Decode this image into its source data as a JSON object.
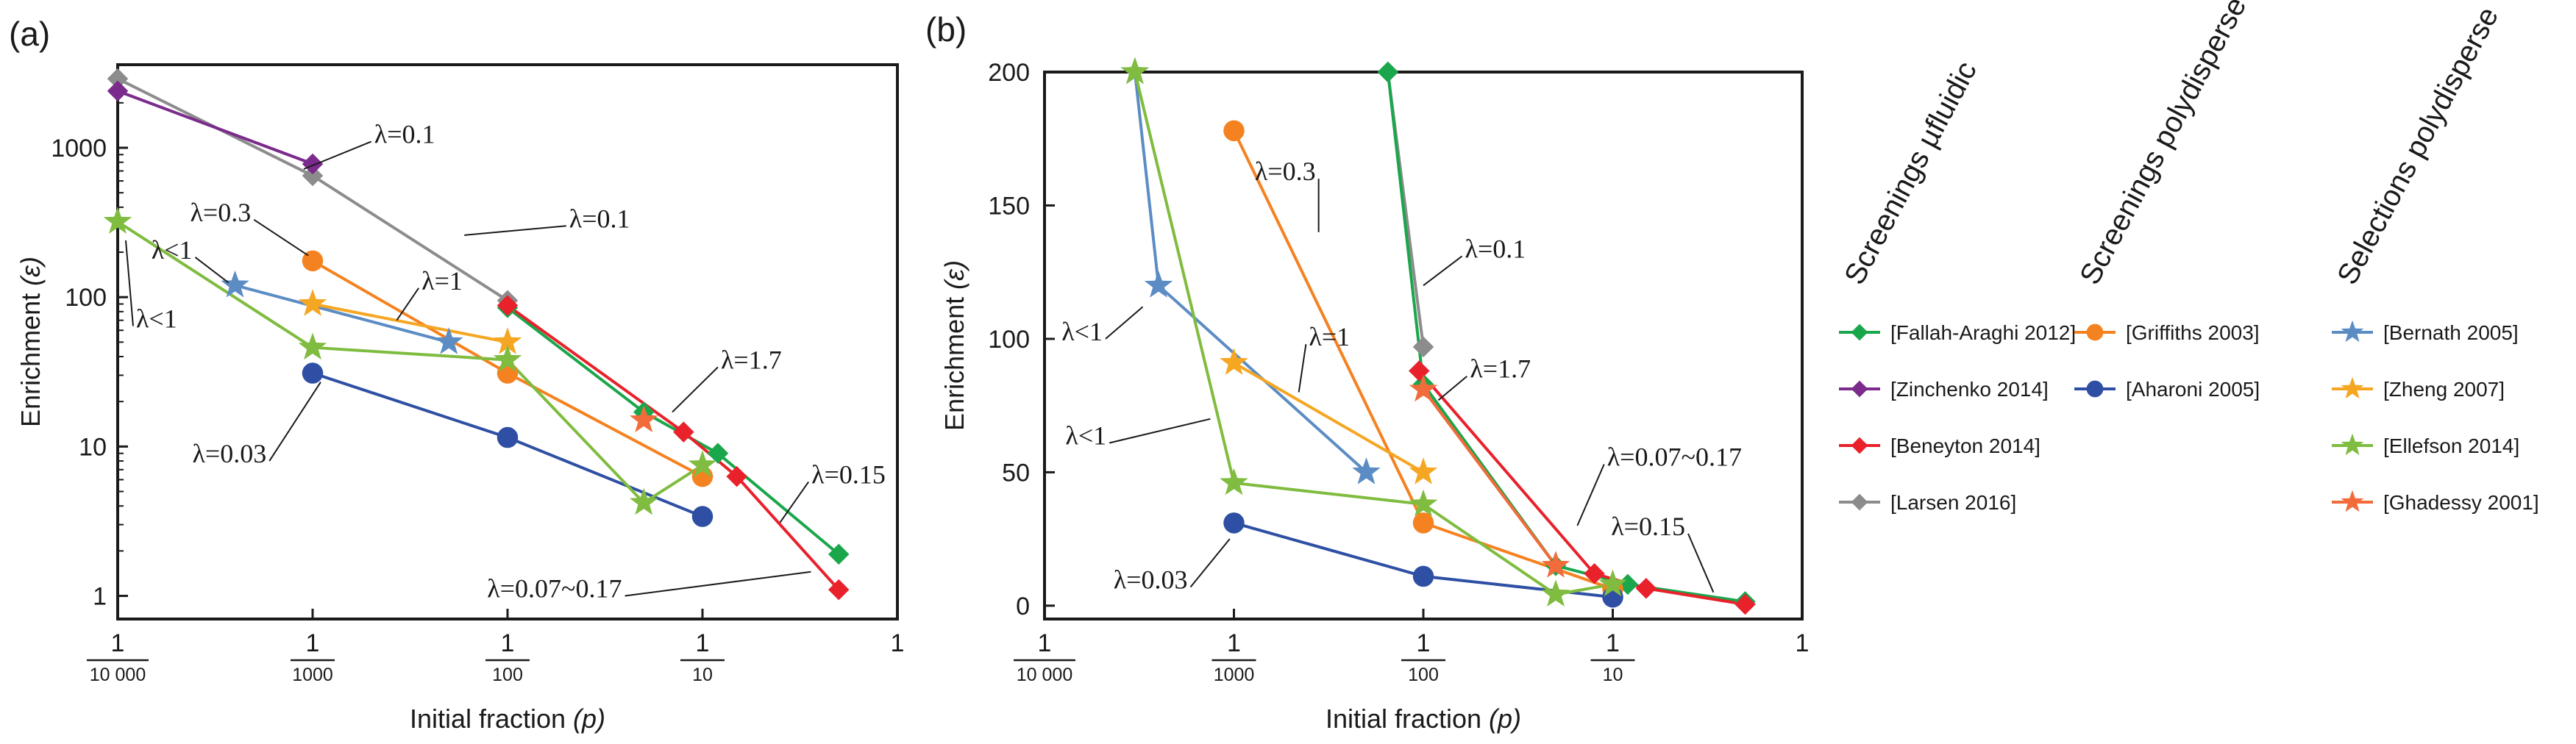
{
  "chart_data": [
    {
      "panel_label": "(a)",
      "type": "line",
      "xscale": "log",
      "yscale": "log",
      "xlim": [
        0.0001,
        1
      ],
      "ylim": [
        0.7,
        3600
      ],
      "xlabel_main": "Initial fraction ",
      "xlabel_var": "(p)",
      "ylabel_main": "Enrichment ",
      "ylabel_var": "(ε)",
      "x_ticks": [
        {
          "value": 0.0001,
          "num": "1",
          "den": "10 000"
        },
        {
          "value": 0.001,
          "num": "1",
          "den": "1000"
        },
        {
          "value": 0.01,
          "num": "1",
          "den": "100"
        },
        {
          "value": 0.1,
          "num": "1",
          "den": "10"
        },
        {
          "value": 1,
          "label": "1"
        }
      ],
      "y_ticks": [
        {
          "value": 1,
          "label": "1"
        },
        {
          "value": 10,
          "label": "10"
        },
        {
          "value": 100,
          "label": "100"
        },
        {
          "value": 1000,
          "label": "1000"
        }
      ],
      "series": [
        {
          "name": "[Larsen 2016]",
          "color": "#8c8c8c",
          "marker": "diamond",
          "points": [
            [
              0.0001,
              2900
            ],
            [
              0.001,
              650
            ],
            [
              0.01,
              95
            ]
          ]
        },
        {
          "name": "[Zinchenko 2014]",
          "color": "#7b2b8c",
          "marker": "diamond",
          "points": [
            [
              0.0001,
              2400
            ],
            [
              0.001,
              780
            ]
          ]
        },
        {
          "name": "[Fallah-Araghi 2012]",
          "color": "#1aa64b",
          "marker": "diamond",
          "points": [
            [
              0.01,
              85
            ],
            [
              0.05,
              17
            ],
            [
              0.12,
              9
            ],
            [
              0.5,
              1.9
            ]
          ]
        },
        {
          "name": "[Beneyton 2014]",
          "color": "#e8212b",
          "marker": "diamond",
          "points": [
            [
              0.01,
              88
            ],
            [
              0.08,
              12.5
            ],
            [
              0.15,
              6.3
            ],
            [
              0.5,
              1.1
            ]
          ]
        },
        {
          "name": "[Griffiths 2003]",
          "color": "#f58220",
          "marker": "circle",
          "points": [
            [
              0.001,
              175
            ],
            [
              0.01,
              31
            ],
            [
              0.1,
              6.3
            ]
          ]
        },
        {
          "name": "[Aharoni 2005]",
          "color": "#2e4fa3",
          "marker": "circle",
          "points": [
            [
              0.001,
              31
            ],
            [
              0.01,
              11.5
            ],
            [
              0.1,
              3.4
            ]
          ]
        },
        {
          "name": "[Bernath 2005]",
          "color": "#5b8cc4",
          "marker": "star",
          "points": [
            [
              0.0004,
              120
            ],
            [
              0.005,
              50
            ]
          ]
        },
        {
          "name": "[Zheng 2007]",
          "color": "#f5a623",
          "marker": "star",
          "points": [
            [
              0.001,
              90
            ],
            [
              0.01,
              50
            ]
          ]
        },
        {
          "name": "[Ellefson 2014]",
          "color": "#7fbc3f",
          "marker": "star",
          "points": [
            [
              0.0001,
              320
            ],
            [
              0.001,
              46
            ],
            [
              0.01,
              38
            ],
            [
              0.05,
              4.2
            ],
            [
              0.1,
              7.5
            ]
          ]
        },
        {
          "name": "[Ghadessy 2001]",
          "color": "#f26b3a",
          "marker": "star",
          "points": [
            [
              0.05,
              15
            ]
          ]
        }
      ],
      "annotations": [
        {
          "text": "λ=0.1",
          "at": [
            0.002,
            1100
          ],
          "target": [
            0.0009,
            720
          ]
        },
        {
          "text": "λ=0.1",
          "at": [
            0.02,
            300
          ],
          "target": [
            0.006,
            260
          ]
        },
        {
          "text": "λ=0.3",
          "at": [
            0.0005,
            330
          ],
          "target": [
            0.00095,
            190
          ]
        },
        {
          "text": "λ<1",
          "at": [
            0.00025,
            185
          ],
          "target": [
            0.00037,
            125
          ]
        },
        {
          "text": "λ<1",
          "at": [
            0.00012,
            64
          ],
          "target": [
            0.00011,
            240
          ]
        },
        {
          "text": "λ=1",
          "at": [
            0.0035,
            115
          ],
          "target": [
            0.0027,
            70
          ]
        },
        {
          "text": "λ=1.7",
          "at": [
            0.12,
            34
          ],
          "target": [
            0.07,
            17
          ]
        },
        {
          "text": "λ=0.03",
          "at": [
            0.0006,
            8
          ],
          "target": [
            0.0011,
            27
          ]
        },
        {
          "text": "λ=0.15",
          "at": [
            0.35,
            5.8
          ],
          "target": [
            0.25,
            3.1
          ]
        },
        {
          "text": "λ=0.07~0.17",
          "at": [
            0.04,
            1
          ],
          "target": [
            0.36,
            1.45
          ]
        }
      ]
    },
    {
      "panel_label": "(b)",
      "type": "line",
      "xscale": "log",
      "yscale": "linear",
      "xlim": [
        0.0001,
        1
      ],
      "ylim": [
        -5,
        200
      ],
      "xlabel_main": "Initial fraction ",
      "xlabel_var": "(p)",
      "ylabel_main": "Enrichment ",
      "ylabel_var": "(ε)",
      "x_ticks": [
        {
          "value": 0.0001,
          "num": "1",
          "den": "10 000"
        },
        {
          "value": 0.001,
          "num": "1",
          "den": "1000"
        },
        {
          "value": 0.01,
          "num": "1",
          "den": "100"
        },
        {
          "value": 0.1,
          "num": "1",
          "den": "10"
        },
        {
          "value": 1,
          "label": "1"
        }
      ],
      "y_ticks": [
        {
          "value": 0,
          "label": "0"
        },
        {
          "value": 50,
          "label": "50"
        },
        {
          "value": 100,
          "label": "100"
        },
        {
          "value": 150,
          "label": "150"
        },
        {
          "value": 200,
          "label": "200"
        }
      ],
      "series": [
        {
          "name": "[Larsen 2016]",
          "color": "#8c8c8c",
          "marker": "diamond",
          "points": [
            [
              0.0065,
              200
            ],
            [
              0.01,
              97
            ]
          ]
        },
        {
          "name": "[Fallah-Araghi 2012]",
          "color": "#1aa64b",
          "marker": "diamond",
          "points": [
            [
              0.0065,
              200
            ],
            [
              0.01,
              83
            ],
            [
              0.05,
              15
            ],
            [
              0.12,
              8
            ],
            [
              0.5,
              1.5
            ]
          ]
        },
        {
          "name": "[Beneyton 2014]",
          "color": "#e8212b",
          "marker": "diamond",
          "points": [
            [
              0.0095,
              88
            ],
            [
              0.08,
              12
            ],
            [
              0.15,
              6.5
            ],
            [
              0.5,
              0.5
            ]
          ]
        },
        {
          "name": "[Griffiths 2003]",
          "color": "#f58220",
          "marker": "circle",
          "points": [
            [
              0.001,
              178
            ],
            [
              0.01,
              31
            ],
            [
              0.1,
              6.3
            ]
          ]
        },
        {
          "name": "[Aharoni 2005]",
          "color": "#2e4fa3",
          "marker": "circle",
          "points": [
            [
              0.001,
              31
            ],
            [
              0.01,
              11
            ],
            [
              0.1,
              3.2
            ]
          ]
        },
        {
          "name": "[Bernath 2005]",
          "color": "#5b8cc4",
          "marker": "star",
          "points": [
            [
              0.0003,
              200
            ],
            [
              0.0004,
              120
            ],
            [
              0.005,
              50
            ]
          ]
        },
        {
          "name": "[Zheng 2007]",
          "color": "#f5a623",
          "marker": "star",
          "points": [
            [
              0.001,
              91
            ],
            [
              0.01,
              50
            ]
          ]
        },
        {
          "name": "[Ellefson 2014]",
          "color": "#7fbc3f",
          "marker": "star",
          "points": [
            [
              0.0003,
              200
            ],
            [
              0.001,
              46
            ],
            [
              0.01,
              38
            ],
            [
              0.05,
              4.2
            ],
            [
              0.1,
              8
            ]
          ]
        },
        {
          "name": "[Ghadessy 2001]",
          "color": "#f26b3a",
          "marker": "star",
          "points": [
            [
              0.01,
              81
            ],
            [
              0.05,
              15
            ]
          ]
        }
      ],
      "annotations": [
        {
          "text": "λ=0.3",
          "at": [
            0.0028,
            160
          ],
          "target": [
            0.0028,
            140
          ]
        },
        {
          "text": "λ=0.1",
          "at": [
            0.016,
            131
          ],
          "target": [
            0.01,
            120
          ]
        },
        {
          "text": "λ=1.7",
          "at": [
            0.017,
            86
          ],
          "target": [
            0.012,
            77
          ]
        },
        {
          "text": "λ<1",
          "at": [
            0.00021,
            100
          ],
          "target": [
            0.00033,
            112
          ]
        },
        {
          "text": "λ=1",
          "at": [
            0.0024,
            98
          ],
          "target": [
            0.0022,
            80
          ]
        },
        {
          "text": "λ<1",
          "at": [
            0.00022,
            61
          ],
          "target": [
            0.00075,
            70
          ]
        },
        {
          "text": "λ=0.07~0.17",
          "at": [
            0.09,
            53
          ],
          "target": [
            0.065,
            30
          ]
        },
        {
          "text": "λ=0.15",
          "at": [
            0.25,
            27
          ],
          "target": [
            0.34,
            5
          ]
        },
        {
          "text": "λ=0.03",
          "at": [
            0.00059,
            7
          ],
          "target": [
            0.00095,
            25
          ]
        }
      ]
    }
  ],
  "legend": {
    "groups": [
      {
        "title": "Screenings µfluidic",
        "items": [
          {
            "label": "[Fallah-Araghi 2012]",
            "color": "#1aa64b",
            "marker": "diamond"
          },
          {
            "label": "[Zinchenko 2014]",
            "color": "#7b2b8c",
            "marker": "diamond"
          },
          {
            "label": "[Beneyton 2014]",
            "color": "#e8212b",
            "marker": "diamond"
          },
          {
            "label": "[Larsen 2016]",
            "color": "#8c8c8c",
            "marker": "diamond"
          }
        ]
      },
      {
        "title": "Screenings polydisperse",
        "items": [
          {
            "label": "[Griffiths 2003]",
            "color": "#f58220",
            "marker": "circle"
          },
          {
            "label": "[Aharoni 2005]",
            "color": "#2e4fa3",
            "marker": "circle"
          }
        ]
      },
      {
        "title": "Selections polydisperse",
        "items": [
          {
            "label": "[Bernath 2005]",
            "color": "#5b8cc4",
            "marker": "star"
          },
          {
            "label": "[Zheng 2007]",
            "color": "#f5a623",
            "marker": "star"
          },
          {
            "label": "[Ellefson 2014]",
            "color": "#7fbc3f",
            "marker": "star"
          },
          {
            "label": "[Ghadessy 2001]",
            "color": "#f26b3a",
            "marker": "star"
          }
        ]
      }
    ]
  }
}
